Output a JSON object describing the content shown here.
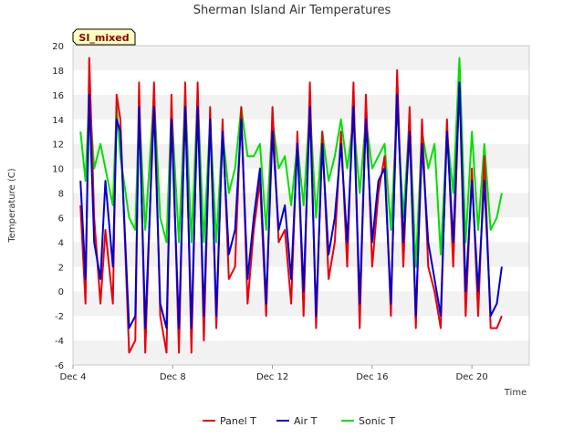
{
  "chart_data": {
    "type": "line",
    "title": "Sherman Island Air Temperatures",
    "xlabel": "Time",
    "ylabel": "Temperature (C)",
    "badge": "SI_mixed",
    "xlim": [
      4,
      22.3
    ],
    "ylim": [
      -6,
      20
    ],
    "x_ticks": [
      {
        "value": 4,
        "label": "Dec 4"
      },
      {
        "value": 8,
        "label": "Dec 8"
      },
      {
        "value": 12,
        "label": "Dec 12"
      },
      {
        "value": 16,
        "label": "Dec 16"
      },
      {
        "value": 20,
        "label": "Dec 20"
      }
    ],
    "y_ticks": [
      -6,
      -4,
      -2,
      0,
      2,
      4,
      6,
      8,
      10,
      12,
      14,
      16,
      18,
      20
    ],
    "grid": "alternating horizontal bands",
    "legend_position": "bottom-center",
    "x_units": "day of December",
    "series": [
      {
        "name": "Panel T",
        "color": "#e8000b",
        "x": [
          4.3,
          4.5,
          4.65,
          4.85,
          5.1,
          5.3,
          5.6,
          5.75,
          5.9,
          6.25,
          6.5,
          6.65,
          6.9,
          7.25,
          7.5,
          7.75,
          7.95,
          8.25,
          8.5,
          8.75,
          9.0,
          9.25,
          9.5,
          9.75,
          10.0,
          10.25,
          10.5,
          10.75,
          11.0,
          11.25,
          11.5,
          11.75,
          12.0,
          12.25,
          12.5,
          12.75,
          13.0,
          13.25,
          13.5,
          13.75,
          14.0,
          14.25,
          14.5,
          14.75,
          15.0,
          15.25,
          15.5,
          15.75,
          16.0,
          16.25,
          16.5,
          16.75,
          17.0,
          17.25,
          17.5,
          17.75,
          18.0,
          18.25,
          18.5,
          18.75,
          19.0,
          19.25,
          19.5,
          19.75,
          20.0,
          20.25,
          20.5,
          20.75,
          21.0,
          21.2
        ],
        "y": [
          7,
          -1,
          19,
          6,
          -1,
          5,
          -1,
          16,
          14,
          -5,
          -4,
          17,
          -5,
          17,
          -2,
          -5,
          16,
          -5,
          17,
          -5,
          17,
          -4,
          15,
          -3,
          14,
          1,
          2,
          15,
          -1,
          5,
          9,
          -2,
          15,
          4,
          5,
          -1,
          13,
          -2,
          17,
          -3,
          13,
          1,
          4,
          13,
          2,
          17,
          -3,
          16,
          2,
          8,
          11,
          -2,
          18,
          2,
          15,
          -3,
          14,
          2,
          0,
          -3,
          14,
          2,
          17,
          -2,
          10,
          -2,
          11,
          -3,
          -3,
          -2
        ]
      },
      {
        "name": "Air T",
        "color": "#0000cd",
        "x": [
          4.3,
          4.5,
          4.65,
          4.85,
          5.1,
          5.3,
          5.6,
          5.75,
          5.9,
          6.25,
          6.5,
          6.65,
          6.9,
          7.25,
          7.5,
          7.75,
          7.95,
          8.25,
          8.5,
          8.75,
          9.0,
          9.25,
          9.5,
          9.75,
          10.0,
          10.25,
          10.5,
          10.75,
          11.0,
          11.25,
          11.5,
          11.75,
          12.0,
          12.25,
          12.5,
          12.75,
          13.0,
          13.25,
          13.5,
          13.75,
          14.0,
          14.25,
          14.5,
          14.75,
          15.0,
          15.25,
          15.5,
          15.75,
          16.0,
          16.25,
          16.5,
          16.75,
          17.0,
          17.25,
          17.5,
          17.75,
          18.0,
          18.25,
          18.5,
          18.75,
          19.0,
          19.25,
          19.5,
          19.75,
          20.0,
          20.25,
          20.5,
          20.75,
          21.0,
          21.2
        ],
        "y": [
          9,
          1,
          16,
          4,
          1,
          9,
          2,
          14,
          13,
          -3,
          -2,
          15,
          -3,
          15,
          -1,
          -3,
          14,
          -3,
          15,
          -3,
          15,
          -2,
          14,
          -2,
          13,
          3,
          5,
          14,
          1,
          6,
          10,
          -1,
          13,
          5,
          7,
          1,
          12,
          0,
          15,
          -2,
          12,
          3,
          6,
          12,
          4,
          15,
          -1,
          14,
          4,
          9,
          10,
          -1,
          16,
          4,
          13,
          -2,
          12,
          4,
          1,
          -2,
          13,
          4,
          17,
          0,
          9,
          0,
          9,
          -2,
          -1,
          2
        ]
      },
      {
        "name": "Sonic T",
        "color": "#00e000",
        "x": [
          4.3,
          4.5,
          4.65,
          4.85,
          5.1,
          5.3,
          5.6,
          5.75,
          5.9,
          6.25,
          6.5,
          6.65,
          6.9,
          7.25,
          7.5,
          7.75,
          7.95,
          8.25,
          8.5,
          8.75,
          9.0,
          9.25,
          9.5,
          9.75,
          10.0,
          10.25,
          10.5,
          10.75,
          11.0,
          11.25,
          11.5,
          11.75,
          12.0,
          12.25,
          12.5,
          12.75,
          13.0,
          13.25,
          13.5,
          13.75,
          14.0,
          14.25,
          14.5,
          14.75,
          15.0,
          15.25,
          15.5,
          15.75,
          16.0,
          16.25,
          16.5,
          16.75,
          17.0,
          17.25,
          17.5,
          17.75,
          18.0,
          18.25,
          18.5,
          18.75,
          19.0,
          19.25,
          19.5,
          19.75,
          20.0,
          20.25,
          20.5,
          20.75,
          21.0,
          21.2
        ],
        "y": [
          13,
          9,
          16,
          10,
          12,
          10,
          7,
          15,
          11,
          6,
          5,
          15,
          5,
          16,
          6,
          4,
          15,
          4,
          16,
          4,
          16,
          4,
          14,
          4,
          13,
          8,
          10,
          15,
          11,
          11,
          12,
          5,
          14,
          10,
          11,
          7,
          12,
          7,
          15,
          6,
          13,
          9,
          11,
          14,
          10,
          14,
          8,
          14,
          10,
          11,
          12,
          5,
          15,
          6,
          14,
          2,
          13,
          10,
          12,
          3,
          13,
          8,
          19,
          4,
          13,
          5,
          12,
          5,
          6,
          8
        ]
      }
    ]
  }
}
